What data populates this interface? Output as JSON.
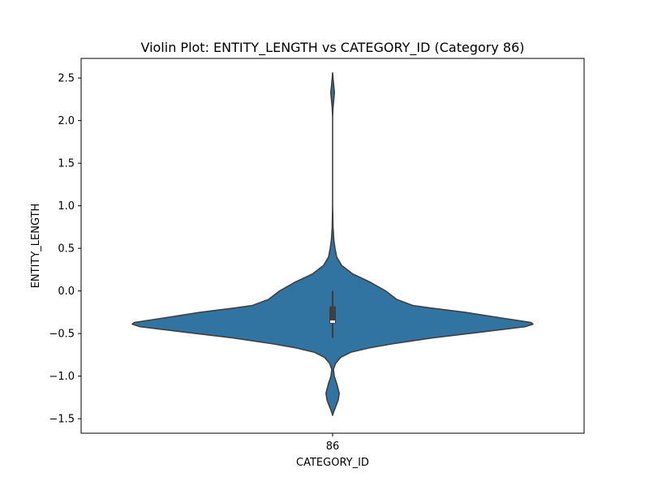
{
  "chart_data": {
    "type": "violin",
    "title": "Violin Plot: ENTITY_LENGTH vs CATEGORY_ID (Category 86)",
    "xlabel": "CATEGORY_ID",
    "ylabel": "ENTITY_LENGTH",
    "categories": [
      "86"
    ],
    "ylim": [
      -1.67,
      2.73
    ],
    "yticks": [
      "−1.5",
      "−1.0",
      "−0.5",
      "0.0",
      "0.5",
      "1.0",
      "1.5",
      "2.0",
      "2.5"
    ],
    "ytick_values": [
      -1.5,
      -1.0,
      -0.5,
      0.0,
      0.5,
      1.0,
      1.5,
      2.0,
      2.5
    ],
    "grid": false,
    "violin_color": "#3274a1",
    "edge_color": "#3f3f3f",
    "density_profile": [
      {
        "y": 2.56,
        "w": 0.0
      },
      {
        "y": 2.5,
        "w": 0.002
      },
      {
        "y": 2.42,
        "w": 0.005
      },
      {
        "y": 2.33,
        "w": 0.009
      },
      {
        "y": 2.25,
        "w": 0.006
      },
      {
        "y": 2.15,
        "w": 0.002
      },
      {
        "y": 2.05,
        "w": 0.0
      },
      {
        "y": 1.5,
        "w": 0.0
      },
      {
        "y": 1.0,
        "w": 0.0
      },
      {
        "y": 0.75,
        "w": 0.002
      },
      {
        "y": 0.6,
        "w": 0.006
      },
      {
        "y": 0.5,
        "w": 0.012
      },
      {
        "y": 0.4,
        "w": 0.02
      },
      {
        "y": 0.3,
        "w": 0.045
      },
      {
        "y": 0.2,
        "w": 0.1
      },
      {
        "y": 0.1,
        "w": 0.19
      },
      {
        "y": 0.0,
        "w": 0.265
      },
      {
        "y": -0.1,
        "w": 0.32
      },
      {
        "y": -0.17,
        "w": 0.4
      },
      {
        "y": -0.2,
        "w": 0.49
      },
      {
        "y": -0.25,
        "w": 0.66
      },
      {
        "y": -0.32,
        "w": 0.85
      },
      {
        "y": -0.37,
        "w": 0.99
      },
      {
        "y": -0.39,
        "w": 1.0
      },
      {
        "y": -0.42,
        "w": 0.96
      },
      {
        "y": -0.48,
        "w": 0.75
      },
      {
        "y": -0.55,
        "w": 0.5
      },
      {
        "y": -0.62,
        "w": 0.3
      },
      {
        "y": -0.67,
        "w": 0.18
      },
      {
        "y": -0.72,
        "w": 0.09
      },
      {
        "y": -0.78,
        "w": 0.04
      },
      {
        "y": -0.85,
        "w": 0.015
      },
      {
        "y": -0.92,
        "w": 0.004
      },
      {
        "y": -1.0,
        "w": 0.008
      },
      {
        "y": -1.1,
        "w": 0.022
      },
      {
        "y": -1.2,
        "w": 0.033
      },
      {
        "y": -1.28,
        "w": 0.028
      },
      {
        "y": -1.36,
        "w": 0.015
      },
      {
        "y": -1.42,
        "w": 0.005
      },
      {
        "y": -1.46,
        "w": 0.0
      }
    ],
    "box": {
      "q1": -0.38,
      "q3": -0.18,
      "median": -0.36,
      "whisker_low": -0.55,
      "whisker_high": 0.0
    }
  }
}
